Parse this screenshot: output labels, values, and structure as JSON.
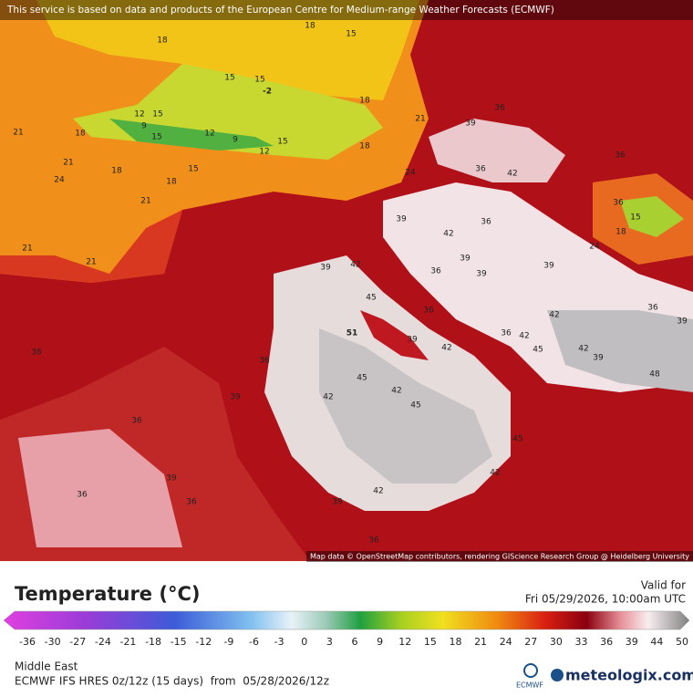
{
  "header": {
    "notice": "This service is based on data and products of the European Centre for Medium-range Weather Forecasts (ECMWF)"
  },
  "map": {
    "credits": "Map data © OpenStreetMap contributors, rendering GIScience Research Group @ Heidelberg University",
    "labels": [
      "18",
      "18",
      "15",
      "15",
      "15",
      "-2",
      "18",
      "21",
      "39",
      "36",
      "21",
      "18",
      "12",
      "15",
      "9",
      "15",
      "12",
      "9",
      "12",
      "15",
      "18",
      "21",
      "18",
      "15",
      "18",
      "24",
      "36",
      "42",
      "24",
      "21",
      "21",
      "21",
      "39",
      "42",
      "39",
      "42",
      "39",
      "36",
      "36",
      "39",
      "39",
      "45",
      "36",
      "51",
      "39",
      "42",
      "36",
      "42",
      "45",
      "42",
      "39",
      "48",
      "36",
      "36",
      "45",
      "42",
      "39",
      "42",
      "45",
      "36",
      "36",
      "39",
      "36",
      "42",
      "39",
      "45",
      "42",
      "36",
      "36",
      "36",
      "15",
      "18",
      "24",
      "36",
      "42",
      "39"
    ]
  },
  "legend": {
    "title": "Temperature (°C)",
    "valid_label": "Valid for",
    "valid_time": "Fri 05/29/2026, 10:00am UTC",
    "ticks": [
      "-36",
      "-30",
      "-27",
      "-24",
      "-21",
      "-18",
      "-15",
      "-12",
      "-9",
      "-6",
      "-3",
      "0",
      "3",
      "6",
      "9",
      "12",
      "15",
      "18",
      "21",
      "24",
      "27",
      "30",
      "33",
      "36",
      "39",
      "44",
      "50"
    ]
  },
  "footer": {
    "region": "Middle East",
    "model": "ECMWF IFS HRES 0z/12z (15 days)  from  05/28/2026/12z",
    "ecmwf": "ECMWF",
    "brand": "meteologix.com"
  }
}
